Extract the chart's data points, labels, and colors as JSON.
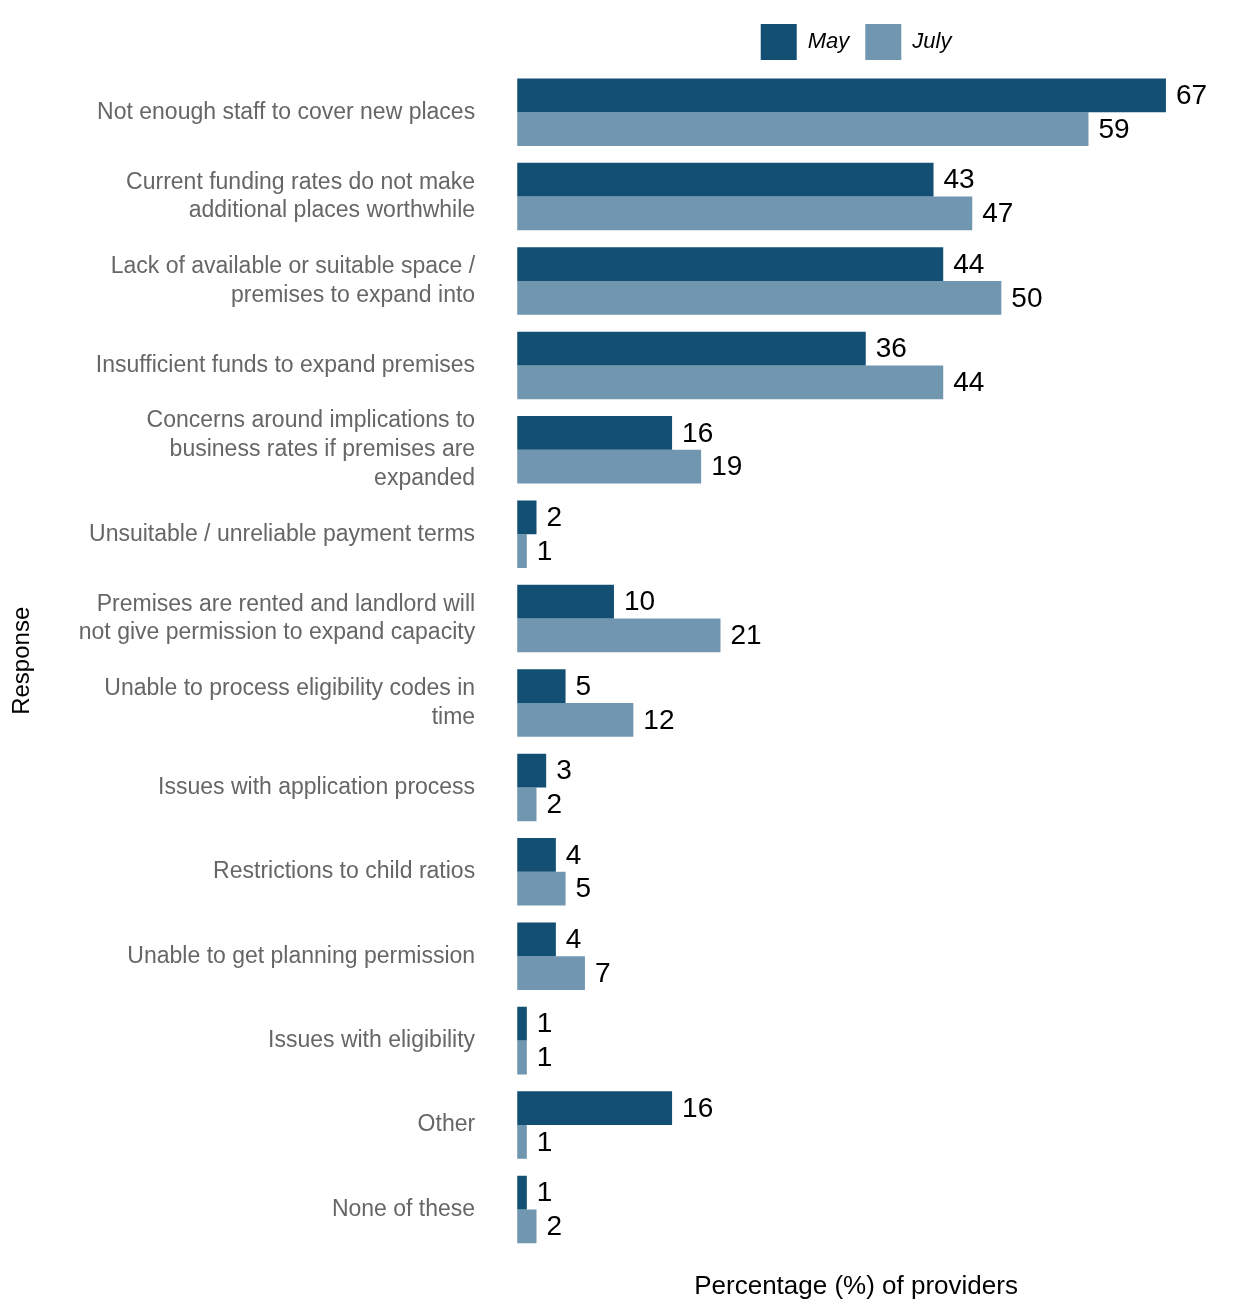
{
  "chart_data": {
    "type": "bar",
    "orientation": "horizontal",
    "xlabel": "Percentage (%) of providers",
    "ylabel": "Response",
    "categories": [
      "Not enough staff to cover new places",
      "Current funding rates do not make additional places worthwhile",
      "Lack of available or suitable space / premises to expand into",
      "Insufficient funds to expand premises",
      "Concerns around implications to business rates if premises are expanded",
      "Unsuitable / unreliable payment terms",
      "Premises are rented and landlord will not give permission to expand capacity",
      "Unable to process eligibility codes in time",
      "Issues with application process",
      "Restrictions to child ratios",
      "Unable to get planning permission",
      "Issues with eligibility",
      "Other",
      "None of these"
    ],
    "series": [
      {
        "name": "May",
        "color": "#124f73",
        "values": [
          67,
          43,
          44,
          36,
          16,
          2,
          10,
          5,
          3,
          4,
          4,
          1,
          16,
          1
        ]
      },
      {
        "name": "July",
        "color": "#7096b0",
        "values": [
          59,
          47,
          50,
          44,
          19,
          1,
          21,
          12,
          2,
          5,
          7,
          1,
          1,
          2
        ]
      }
    ],
    "data_labels": true,
    "legend": "top",
    "grid": false,
    "tick_labels": "y"
  }
}
